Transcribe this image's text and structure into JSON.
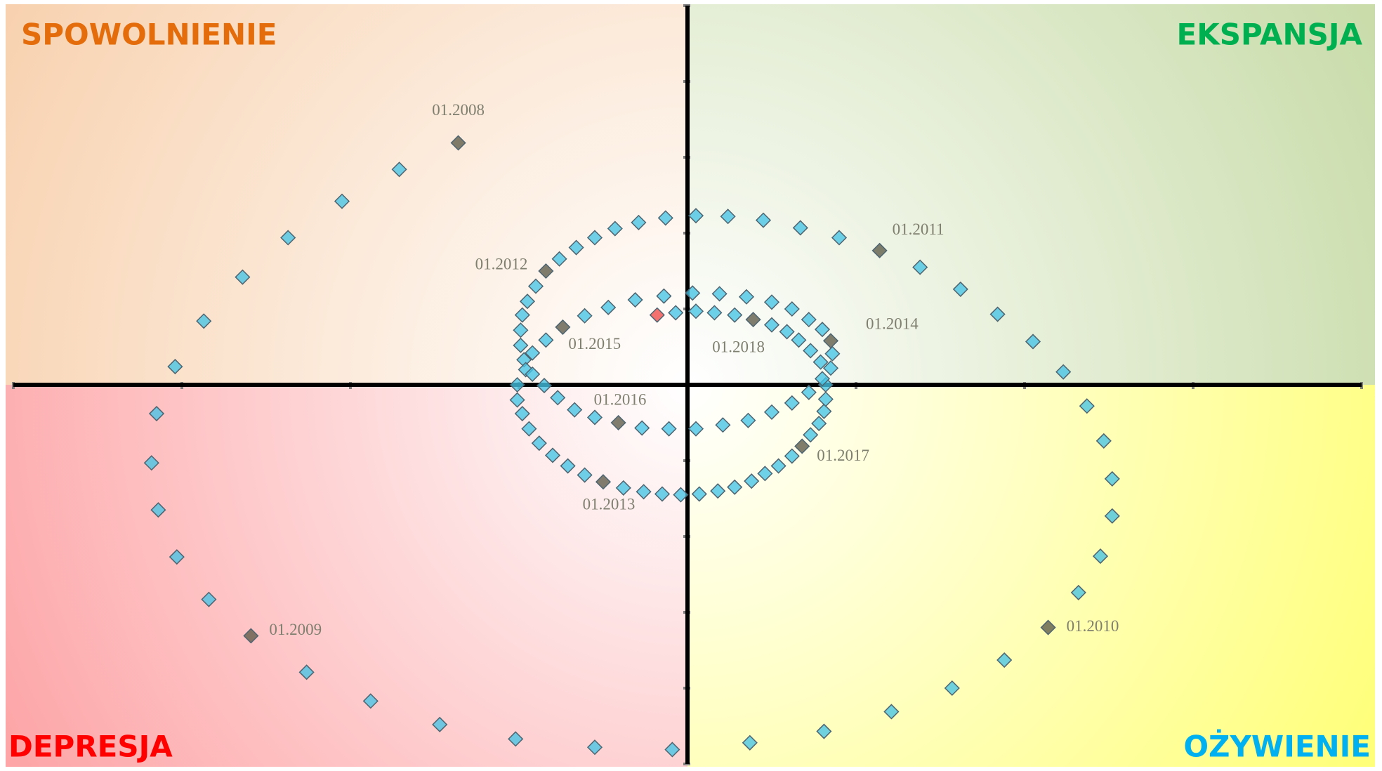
{
  "chart_data": {
    "type": "scatter",
    "xlim": [
      -40,
      40
    ],
    "ylim": [
      -50,
      50
    ],
    "xticks": [
      -40,
      -30,
      -20,
      -10,
      0,
      10,
      20,
      30,
      40
    ],
    "yticks": [
      -50,
      -40,
      -30,
      -20,
      -10,
      0,
      10,
      20,
      30,
      40,
      50
    ],
    "quadrants": [
      {
        "corner": "top-left",
        "label": "SPOWOLNIENIE",
        "color": "#e46c0a",
        "background": "#f8d2b0"
      },
      {
        "corner": "top-right",
        "label": "EKSPANSJA",
        "color": "#00b050",
        "background": "#c9dcaa"
      },
      {
        "corner": "bottom-left",
        "label": "DEPRESJA",
        "color": "#ff0000",
        "background": "#fda5a7"
      },
      {
        "corner": "bottom-right",
        "label": "OŻYWIENIE",
        "color": "#00b0f0",
        "background": "#ffff7a"
      }
    ],
    "series": [
      {
        "color": "#45c4e6",
        "x": [
          -17.1,
          -20.5,
          -23.7,
          -26.4,
          -28.7,
          -30.4,
          -31.5,
          -31.8,
          -31.4,
          -30.3,
          -28.4,
          -22.6,
          -18.8,
          -14.7,
          -10.2,
          -5.5,
          -0.9,
          3.7,
          8.1,
          12.1,
          15.7,
          18.8,
          23.2,
          24.5,
          25.2,
          25.2,
          24.7,
          23.7,
          22.3,
          20.5,
          18.4,
          16.2,
          13.8,
          9.0,
          6.7,
          4.5,
          2.4,
          0.5,
          -1.3,
          -2.9,
          -4.3,
          -5.5,
          -6.6,
          -7.6,
          -9.0,
          -9.5,
          -9.8,
          -9.9,
          -9.9,
          -9.7,
          -10.1,
          -10.1,
          -9.8,
          -9.4,
          -8.8,
          -8.0,
          -7.1,
          -6.1,
          -3.8,
          -2.6,
          -1.5,
          -0.4,
          0.7,
          1.8,
          2.8,
          3.8,
          4.6,
          5.4,
          6.2,
          7.3,
          7.8,
          8.1,
          8.2,
          8.2,
          8.5,
          8.6,
          8.0,
          7.2,
          6.2,
          5.0,
          3.5,
          1.9,
          0.3,
          -1.4,
          -3.1,
          -4.7,
          -6.1,
          -8.4,
          -9.2,
          -9.6,
          -9.2,
          -8.5,
          -7.7,
          -6.7,
          -5.5,
          -2.7,
          -1.1,
          0.5,
          2.1,
          3.6,
          5.0,
          6.2,
          7.2,
          8.0,
          7.9,
          7.3,
          6.6,
          5.9,
          5.0,
          2.8,
          1.6,
          0.5,
          -0.7
        ],
        "y": [
          28.4,
          24.2,
          19.4,
          14.2,
          8.4,
          2.4,
          -3.8,
          -10.3,
          -16.5,
          -22.7,
          -28.3,
          -37.9,
          -41.7,
          -44.8,
          -46.7,
          -47.8,
          -48.1,
          -47.2,
          -45.7,
          -43.1,
          -40.0,
          -36.3,
          -27.4,
          -22.6,
          -17.3,
          -12.4,
          -7.4,
          -2.8,
          1.7,
          5.7,
          9.3,
          12.6,
          15.5,
          19.4,
          20.7,
          21.7,
          22.2,
          22.3,
          22.0,
          21.4,
          20.6,
          19.4,
          18.1,
          16.6,
          13.0,
          11.0,
          9.2,
          7.2,
          5.2,
          3.3,
          0,
          -2.0,
          -3.8,
          -5.8,
          -7.7,
          -9.3,
          -10.7,
          -11.9,
          -13.6,
          -14.1,
          -14.4,
          -14.5,
          -14.4,
          -14.0,
          -13.5,
          -12.7,
          -11.7,
          -10.7,
          -9.4,
          -6.6,
          -5.1,
          -3.5,
          -1.9,
          0,
          2.2,
          4.1,
          7.3,
          8.6,
          10.0,
          10.9,
          11.6,
          12.0,
          12.1,
          11.7,
          11.2,
          10.2,
          9.1,
          5.9,
          4.2,
          2.0,
          1.4,
          -0.1,
          -1.7,
          -3.3,
          -4.3,
          -5.7,
          -5.8,
          -5.8,
          -5.3,
          -4.7,
          -3.6,
          -2.4,
          -1.0,
          0.8,
          3.0,
          4.5,
          5.9,
          7.0,
          7.9,
          9.2,
          9.5,
          9.7,
          9.5
        ]
      },
      {
        "color": "#5c5a48",
        "x": [
          -13.6,
          -25.9,
          21.4,
          11.4,
          -8.4,
          -5.0,
          8.5,
          -7.4,
          -4.1,
          6.8,
          3.9
        ],
        "y": [
          31.9,
          -33.1,
          -32.0,
          17.7,
          15.0,
          -12.8,
          5.8,
          7.6,
          -5.0,
          -8.1,
          8.6
        ],
        "point_labels": [
          "01.2008",
          "01.2009",
          "01.2010",
          "01.2011",
          "01.2012",
          "01.2013",
          "01.2014",
          "01.2015",
          "01.2016",
          "01.2017",
          "01.2018"
        ]
      },
      {
        "color": "#f04a48",
        "x": [
          -1.8
        ],
        "y": [
          9.2
        ]
      }
    ]
  }
}
